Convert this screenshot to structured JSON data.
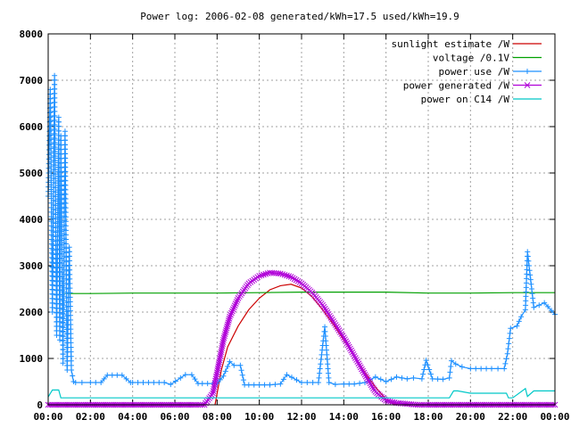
{
  "chart_data": {
    "type": "line",
    "title": "Power log: 2006-02-08 generated/kWh=17.5 used/kWh=19.9",
    "xlabel": "",
    "ylabel": "",
    "xlim": [
      0,
      24
    ],
    "ylim": [
      0,
      8000
    ],
    "grid": true,
    "legend_position": "top-right",
    "x_ticks": [
      {
        "value": 0,
        "label": "00:00"
      },
      {
        "value": 2,
        "label": "02:00"
      },
      {
        "value": 4,
        "label": "04:00"
      },
      {
        "value": 6,
        "label": "06:00"
      },
      {
        "value": 8,
        "label": "08:00"
      },
      {
        "value": 10,
        "label": "10:00"
      },
      {
        "value": 12,
        "label": "12:00"
      },
      {
        "value": 14,
        "label": "14:00"
      },
      {
        "value": 16,
        "label": "16:00"
      },
      {
        "value": 18,
        "label": "18:00"
      },
      {
        "value": 20,
        "label": "20:00"
      },
      {
        "value": 22,
        "label": "22:00"
      },
      {
        "value": 24,
        "label": "00:00"
      }
    ],
    "y_ticks": [
      {
        "value": 0,
        "label": "0"
      },
      {
        "value": 1000,
        "label": "1000"
      },
      {
        "value": 2000,
        "label": "2000"
      },
      {
        "value": 3000,
        "label": "3000"
      },
      {
        "value": 4000,
        "label": "4000"
      },
      {
        "value": 5000,
        "label": "5000"
      },
      {
        "value": 6000,
        "label": "6000"
      },
      {
        "value": 7000,
        "label": "7000"
      },
      {
        "value": 8000,
        "label": "8000"
      }
    ],
    "series": [
      {
        "name": "sunlight estimate /W",
        "color": "#cc0000",
        "marker": "none",
        "x": [
          7.9,
          8.2,
          8.5,
          9.0,
          9.5,
          10.0,
          10.5,
          11.0,
          11.5,
          12.0,
          12.5,
          13.0,
          13.5,
          14.0,
          14.5,
          15.0,
          15.5,
          16.0,
          16.3,
          16.6
        ],
        "values": [
          0,
          750,
          1250,
          1700,
          2050,
          2300,
          2480,
          2570,
          2600,
          2520,
          2330,
          2050,
          1740,
          1400,
          1050,
          700,
          380,
          120,
          30,
          0
        ]
      },
      {
        "name": "voltage /0.1V",
        "color": "#00a000",
        "marker": "none",
        "x": [
          0.75,
          1.0,
          2.0,
          4.0,
          6.0,
          8.0,
          10.0,
          12.0,
          14.0,
          16.0,
          18.0,
          20.0,
          22.0,
          24.0
        ],
        "values": [
          2400,
          2400,
          2400,
          2410,
          2410,
          2410,
          2420,
          2430,
          2430,
          2430,
          2410,
          2410,
          2420,
          2420
        ]
      },
      {
        "name": "power use /W",
        "color": "#1e90ff",
        "marker": "plus",
        "x": [
          0.0,
          0.1,
          0.2,
          0.3,
          0.4,
          0.5,
          0.55,
          0.6,
          0.7,
          0.8,
          0.9,
          1.0,
          1.1,
          1.2,
          1.3,
          1.6,
          2.0,
          2.5,
          2.8,
          3.5,
          3.9,
          4.0,
          5.0,
          5.5,
          5.8,
          6.5,
          6.8,
          7.1,
          7.3,
          7.8,
          8.0,
          8.3,
          8.6,
          8.8,
          9.1,
          9.3,
          9.5,
          10.5,
          11.0,
          11.3,
          12.0,
          12.8,
          13.1,
          13.3,
          13.6,
          14.0,
          14.5,
          15.0,
          15.5,
          16.0,
          16.5,
          17.0,
          17.3,
          17.7,
          17.9,
          18.2,
          18.7,
          19.0,
          19.1,
          19.3,
          19.6,
          20.0,
          21.0,
          21.6,
          21.75,
          21.9,
          22.2,
          22.4,
          22.6,
          22.7,
          23.0,
          23.5,
          24.0
        ],
        "values": [
          4500,
          6800,
          2000,
          7100,
          1500,
          6200,
          1400,
          5800,
          900,
          5900,
          750,
          3400,
          750,
          500,
          480,
          480,
          480,
          480,
          640,
          640,
          480,
          480,
          480,
          480,
          440,
          650,
          650,
          460,
          460,
          460,
          460,
          620,
          930,
          850,
          850,
          430,
          430,
          430,
          450,
          650,
          480,
          480,
          1680,
          480,
          440,
          450,
          450,
          480,
          600,
          500,
          600,
          560,
          580,
          560,
          960,
          560,
          550,
          580,
          950,
          880,
          820,
          780,
          780,
          780,
          1100,
          1650,
          1700,
          1900,
          2050,
          3300,
          2100,
          2200,
          1950
        ]
      },
      {
        "name": "power generated /W",
        "color": "#b000d8",
        "marker": "x",
        "x": [
          0.0,
          7.0,
          7.4,
          7.8,
          8.0,
          8.3,
          8.6,
          9.0,
          9.5,
          10.0,
          10.5,
          11.0,
          11.5,
          12.0,
          12.5,
          13.0,
          13.5,
          14.0,
          14.5,
          15.0,
          15.5,
          16.0,
          16.5,
          17.0,
          17.5,
          18.0,
          20.0,
          22.0,
          24.0
        ],
        "values": [
          0,
          0,
          0,
          250,
          700,
          1400,
          1900,
          2300,
          2620,
          2780,
          2850,
          2830,
          2760,
          2620,
          2420,
          2150,
          1800,
          1450,
          1050,
          650,
          280,
          90,
          40,
          20,
          0,
          0,
          0,
          0,
          0
        ]
      },
      {
        "name": "power on C14 /W",
        "color": "#00c8c8",
        "marker": "none",
        "x": [
          0.0,
          0.2,
          0.5,
          0.6,
          1.0,
          4.0,
          8.0,
          12.0,
          16.0,
          18.5,
          19.0,
          19.2,
          19.4,
          20.0,
          21.7,
          21.8,
          22.0,
          22.6,
          22.7,
          23.0,
          23.5,
          24.0
        ],
        "values": [
          170,
          320,
          320,
          150,
          150,
          150,
          150,
          150,
          150,
          150,
          150,
          300,
          300,
          250,
          250,
          150,
          150,
          350,
          180,
          300,
          300,
          300
        ]
      }
    ]
  }
}
